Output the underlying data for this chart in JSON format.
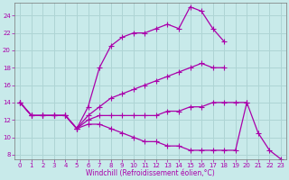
{
  "xlabel": "Windchill (Refroidissement éolien,°C)",
  "xlim": [
    -0.5,
    23.5
  ],
  "ylim": [
    7.5,
    25.5
  ],
  "xticks": [
    0,
    1,
    2,
    3,
    4,
    5,
    6,
    7,
    8,
    9,
    10,
    11,
    12,
    13,
    14,
    15,
    16,
    17,
    18,
    19,
    20,
    21,
    22,
    23
  ],
  "yticks": [
    8,
    10,
    12,
    14,
    16,
    18,
    20,
    22,
    24
  ],
  "bg_color": "#c8eaea",
  "line_color": "#aa00aa",
  "grid_color": "#aed4d4",
  "line1_x": [
    0,
    1,
    2,
    3,
    4,
    5,
    6,
    7,
    8,
    9,
    10,
    11,
    12,
    13,
    14,
    15,
    16,
    17,
    18
  ],
  "line1_y": [
    14.0,
    12.5,
    12.5,
    12.5,
    12.5,
    11.0,
    13.5,
    18.0,
    20.5,
    21.5,
    22.0,
    22.0,
    22.5,
    23.0,
    22.5,
    25.0,
    24.5,
    22.5,
    21.0
  ],
  "line2_x": [
    0,
    1,
    2,
    3,
    4,
    5,
    6,
    7,
    8,
    9,
    10,
    11,
    12,
    13,
    14,
    15,
    16,
    17,
    18
  ],
  "line2_y": [
    14.0,
    12.5,
    12.5,
    12.5,
    12.5,
    11.0,
    12.5,
    13.5,
    14.5,
    15.0,
    15.5,
    16.0,
    16.5,
    17.0,
    17.5,
    18.0,
    18.5,
    18.0,
    18.0
  ],
  "line3_x": [
    0,
    1,
    2,
    3,
    4,
    5,
    6,
    7,
    8,
    9,
    10,
    11,
    12,
    13,
    14,
    15,
    16,
    17,
    18,
    19,
    20
  ],
  "line3_y": [
    14.0,
    12.5,
    12.5,
    12.5,
    12.5,
    11.0,
    12.0,
    12.5,
    12.5,
    12.5,
    12.5,
    12.5,
    12.5,
    13.0,
    13.0,
    13.5,
    13.5,
    14.0,
    14.0,
    14.0,
    14.0
  ],
  "line4_x": [
    0,
    1,
    2,
    3,
    4,
    5,
    6,
    7,
    8,
    9,
    10,
    11,
    12,
    13,
    14,
    15,
    16,
    17,
    18,
    19,
    20,
    21,
    22,
    23
  ],
  "line4_y": [
    14.0,
    12.5,
    12.5,
    12.5,
    12.5,
    11.0,
    11.5,
    11.5,
    11.0,
    10.5,
    10.0,
    9.5,
    9.5,
    9.0,
    9.0,
    8.5,
    8.5,
    8.5,
    8.5,
    8.5,
    14.0,
    10.5,
    8.5,
    7.5
  ]
}
